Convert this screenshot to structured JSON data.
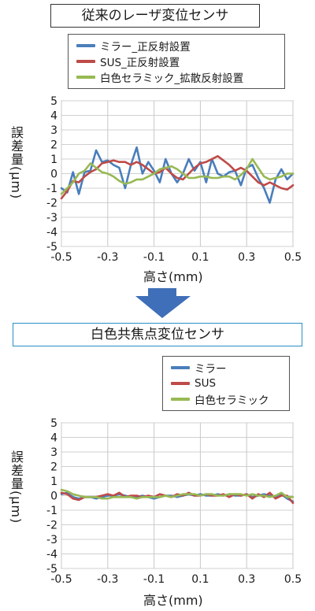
{
  "top": {
    "title": "従来のレーザ変位センサ",
    "xlabel": "高さ(mm)",
    "ylabel": "誤差量(μm)"
  },
  "bottom": {
    "title": "白色共焦点変位センサ",
    "xlabel": "高さ(mm)",
    "ylabel": "誤差量(μm)"
  },
  "colors": {
    "blue": "#4a7ebb",
    "red": "#be4b48",
    "green": "#98b954",
    "arrow": "#3f6fb8"
  },
  "chart_data": [
    {
      "type": "line",
      "title": "従来のレーザ変位センサ",
      "xlabel": "高さ(mm)",
      "ylabel": "誤差量(μm)",
      "xlim": [
        -0.5,
        0.5
      ],
      "ylim": [
        -5,
        5
      ],
      "xticks": [
        "-0.5",
        "-0.3",
        "-0.1",
        "0.1",
        "0.3",
        "0.5"
      ],
      "yticks": [
        "5",
        "4",
        "3",
        "2",
        "1",
        "0",
        "-1",
        "-2",
        "-3",
        "-4",
        "-5"
      ],
      "grid": true,
      "legend": "top",
      "x": [
        -0.5,
        -0.475,
        -0.45,
        -0.425,
        -0.4,
        -0.375,
        -0.35,
        -0.325,
        -0.3,
        -0.275,
        -0.25,
        -0.225,
        -0.2,
        -0.175,
        -0.15,
        -0.125,
        -0.1,
        -0.075,
        -0.05,
        -0.025,
        0.0,
        0.025,
        0.05,
        0.075,
        0.1,
        0.125,
        0.15,
        0.175,
        0.2,
        0.225,
        0.25,
        0.275,
        0.3,
        0.325,
        0.35,
        0.375,
        0.4,
        0.425,
        0.45,
        0.475,
        0.5
      ],
      "series": [
        {
          "name": "ミラー_正反射設置",
          "color": "#4a7ebb",
          "values": [
            -1.0,
            -1.3,
            0.1,
            -1.4,
            0.1,
            0.2,
            1.6,
            0.8,
            0.9,
            0.6,
            0.4,
            -1.0,
            0.6,
            1.8,
            0.0,
            0.8,
            0.2,
            -0.6,
            1.0,
            0.0,
            -0.6,
            0.0,
            1.0,
            0.2,
            0.8,
            -0.6,
            1.0,
            0.0,
            -0.2,
            0.1,
            0.2,
            -0.8,
            0.4,
            0.6,
            -0.3,
            -1.0,
            -2.0,
            -0.4,
            0.3,
            -0.4,
            0.0
          ]
        },
        {
          "name": "SUS_正反射設置",
          "color": "#be4b48",
          "values": [
            -1.7,
            -1.2,
            -0.5,
            -0.6,
            -0.2,
            0.1,
            0.3,
            0.7,
            0.8,
            0.9,
            0.8,
            0.8,
            0.6,
            0.8,
            0.6,
            0.3,
            0.0,
            0.1,
            0.4,
            0.0,
            -0.3,
            -0.4,
            0.0,
            0.4,
            0.7,
            0.8,
            1.0,
            1.2,
            0.9,
            0.6,
            0.2,
            0.4,
            0.2,
            -0.2,
            -0.6,
            -0.8,
            -0.6,
            -0.8,
            -1.0,
            -1.1,
            -0.8
          ]
        },
        {
          "name": "白色セラミック_拡散反射設置",
          "color": "#98b954",
          "values": [
            -1.4,
            -1.0,
            -0.6,
            0.0,
            0.2,
            0.7,
            0.4,
            0.1,
            0.0,
            -0.2,
            -0.5,
            -0.7,
            -0.6,
            -0.4,
            -0.4,
            -0.2,
            0.0,
            0.3,
            0.4,
            0.5,
            0.3,
            0.0,
            -0.3,
            -0.3,
            -0.2,
            -0.2,
            -0.3,
            -0.3,
            -0.2,
            -0.2,
            -0.4,
            -0.1,
            0.3,
            1.0,
            0.4,
            -0.2,
            -0.4,
            -0.3,
            -0.2,
            0.0,
            0.0
          ]
        }
      ]
    },
    {
      "type": "line",
      "title": "白色共焦点変位センサ",
      "xlabel": "高さ(mm)",
      "ylabel": "誤差量(μm)",
      "xlim": [
        -0.5,
        0.5
      ],
      "ylim": [
        -5,
        5
      ],
      "xticks": [
        "-0.5",
        "-0.3",
        "-0.1",
        "0.1",
        "0.3",
        "0.5"
      ],
      "yticks": [
        "5",
        "4",
        "3",
        "2",
        "1",
        "0",
        "-1",
        "-2",
        "-3",
        "-4",
        "-5"
      ],
      "grid": true,
      "legend": "top-right",
      "x": [
        -0.5,
        -0.475,
        -0.45,
        -0.425,
        -0.4,
        -0.375,
        -0.35,
        -0.325,
        -0.3,
        -0.275,
        -0.25,
        -0.225,
        -0.2,
        -0.175,
        -0.15,
        -0.125,
        -0.1,
        -0.075,
        -0.05,
        -0.025,
        0.0,
        0.025,
        0.05,
        0.075,
        0.1,
        0.125,
        0.15,
        0.175,
        0.2,
        0.225,
        0.25,
        0.275,
        0.3,
        0.325,
        0.35,
        0.375,
        0.4,
        0.425,
        0.45,
        0.475,
        0.5
      ],
      "series": [
        {
          "name": "ミラー",
          "color": "#4a7ebb",
          "values": [
            0.1,
            0.2,
            -0.1,
            -0.2,
            -0.1,
            -0.1,
            -0.2,
            -0.1,
            0.0,
            0.0,
            0.1,
            0.0,
            -0.1,
            -0.1,
            0.0,
            -0.1,
            -0.2,
            -0.1,
            0.0,
            0.0,
            -0.1,
            0.0,
            0.1,
            0.0,
            0.1,
            0.0,
            0.0,
            0.1,
            0.0,
            0.1,
            0.0,
            0.0,
            0.1,
            -0.1,
            0.0,
            0.1,
            0.0,
            -0.1,
            0.1,
            -0.2,
            -0.4
          ]
        },
        {
          "name": "SUS",
          "color": "#be4b48",
          "values": [
            0.2,
            0.1,
            -0.2,
            -0.3,
            -0.1,
            -0.1,
            -0.1,
            0.0,
            0.1,
            0.0,
            0.2,
            -0.1,
            0.0,
            0.0,
            -0.1,
            0.0,
            -0.1,
            0.1,
            0.0,
            -0.1,
            0.1,
            0.0,
            0.2,
            0.0,
            0.0,
            0.1,
            0.0,
            0.0,
            0.1,
            -0.1,
            0.1,
            0.0,
            0.1,
            -0.2,
            0.1,
            -0.1,
            0.2,
            -0.2,
            0.0,
            0.0,
            -0.5
          ]
        },
        {
          "name": "白色セラミック",
          "color": "#98b954",
          "values": [
            0.4,
            0.3,
            0.1,
            0.0,
            -0.1,
            -0.1,
            -0.1,
            -0.2,
            -0.2,
            -0.1,
            -0.1,
            -0.1,
            -0.1,
            -0.2,
            -0.1,
            -0.1,
            -0.1,
            -0.1,
            0.0,
            -0.1,
            0.0,
            0.1,
            0.1,
            0.1,
            0.0,
            0.1,
            0.1,
            0.0,
            0.0,
            0.1,
            0.1,
            0.1,
            0.0,
            0.1,
            0.0,
            0.0,
            -0.1,
            0.0,
            0.2,
            -0.1,
            -0.1
          ]
        }
      ]
    }
  ]
}
